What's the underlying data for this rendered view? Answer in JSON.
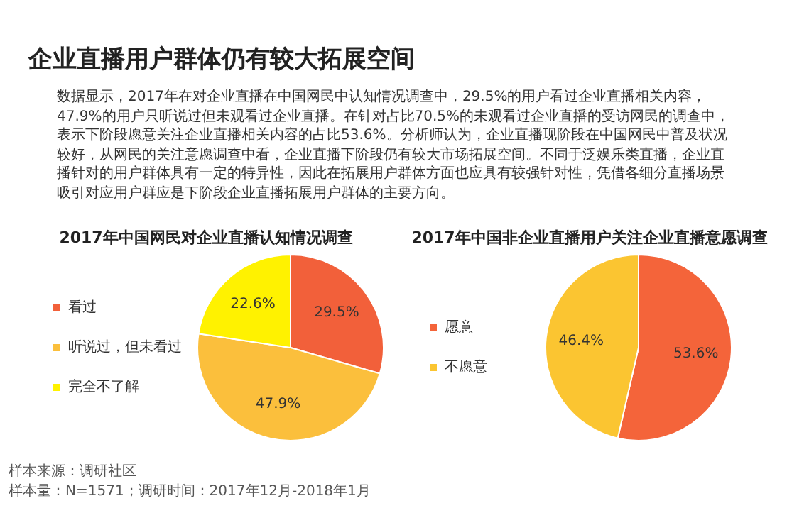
{
  "chart_data": [
    {
      "type": "other",
      "title": "企业直播用户群体仍有较大拓展空间",
      "annotations": [
        "数据显示，2017年在对企业直播在中国网民中认知情况调查中，29.5%的用户看过企业直播相关内容，47.9%的用户只听说过但未观看过企业直播。在针对占比70.5%的未观看过企业直播的受访网民的调查中，表示下阶段愿意关注企业直播相关内容的占比53.6%。分析师认为，企业直播现阶段在中国网民中普及状况较好，从网民的关注意愿调查中看，企业直播下阶段仍有较大市场拓展空间。不同于泛娱乐类直播，企业直播针对的用户群体具有一定的特异性，因此在拓展用户群体方面也应具有较强针对性，凭借各细分直播场景吸引对应用户群应是下阶段企业直播拓展用户群体的主要方向。"
      ]
    },
    {
      "type": "pie",
      "title": "2017年中国网民对企业直播认知情况调查",
      "categories": [
        "看过",
        "听说过，但未看过",
        "完全不了解"
      ],
      "values": [
        29.5,
        47.9,
        22.6
      ],
      "colors": [
        "#f2603a",
        "#fbbf3c",
        "#fff200"
      ],
      "value_labels": [
        "29.5%",
        "47.9%",
        "22.6%"
      ],
      "legend": "left",
      "annotations": [
        "样本来源：调研社区",
        "样本量：N=1571；调研时间：2017年12月-2018年1月"
      ]
    },
    {
      "type": "pie",
      "title": "2017年中国非企业直播用户关注企业直播意愿调查",
      "categories": [
        "愿意",
        "不愿意"
      ],
      "values": [
        53.6,
        46.4
      ],
      "colors": [
        "#f4643a",
        "#fbc531"
      ],
      "value_labels": [
        "53.6%",
        "46.4%"
      ],
      "legend": "left"
    }
  ]
}
